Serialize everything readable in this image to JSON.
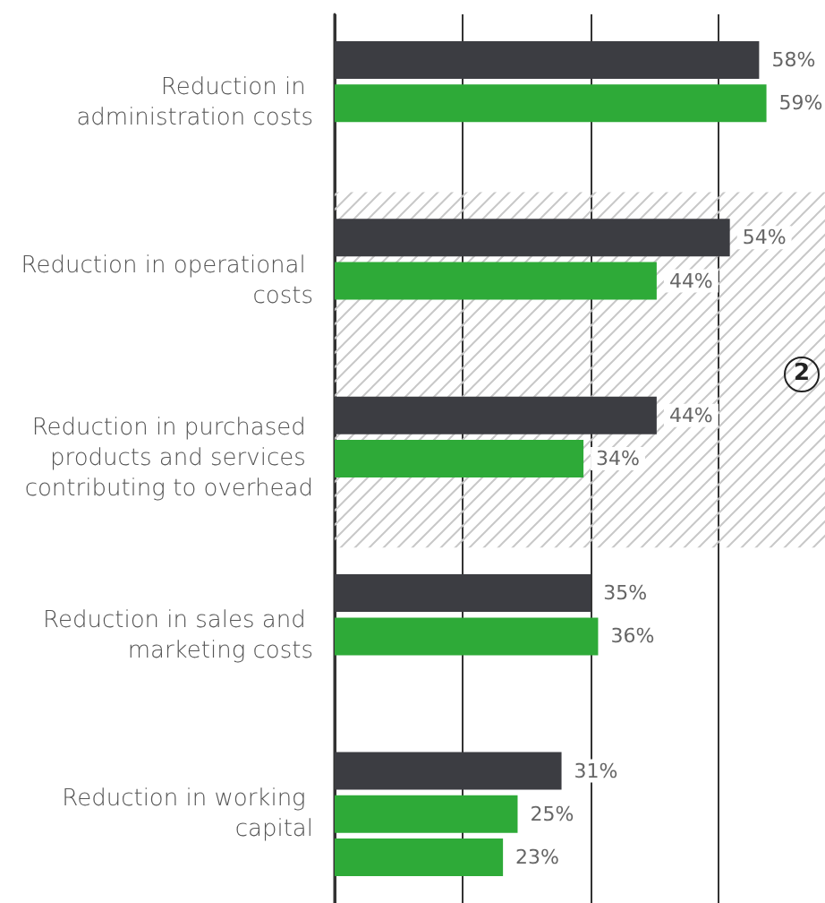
{
  "chart_data": {
    "type": "bar",
    "orientation": "horizontal",
    "categories": [
      "Reduction in administration costs",
      "Reduction in operational costs",
      "Reduction in purchased products and services contributing to overhead",
      "Reduction in sales and marketing costs",
      "Reduction in working capital"
    ],
    "series": [
      {
        "color": "#3c3d42",
        "values": [
          58,
          54,
          44,
          35,
          31
        ],
        "value_labels": [
          "58%",
          "54%",
          "44%",
          "35%",
          "31%"
        ]
      },
      {
        "color": "#2eaa38",
        "values": [
          59,
          44,
          34,
          36,
          25
        ],
        "value_labels": [
          "59%",
          "44%",
          "34%",
          "36%",
          "25%"
        ]
      },
      {
        "color": "#2eaa38",
        "values": [
          null,
          null,
          null,
          null,
          23
        ],
        "value_labels": [
          null,
          null,
          null,
          null,
          "23%"
        ]
      }
    ],
    "xlim": [
      0,
      67
    ],
    "xticks": [
      {
        "value": 0,
        "label": null
      },
      {
        "value": 17.5,
        "label": null
      },
      {
        "value": 35,
        "label": null
      },
      {
        "value": 52.5,
        "label": null
      }
    ],
    "grid": "x",
    "tick_labels": "y",
    "bands": [
      {
        "axis": "y",
        "from": "Reduction in operational costs",
        "to": "Reduction in purchased products and services contributing to overhead",
        "color": "#c8c8c8"
      }
    ],
    "annotations": [
      "2"
    ]
  }
}
